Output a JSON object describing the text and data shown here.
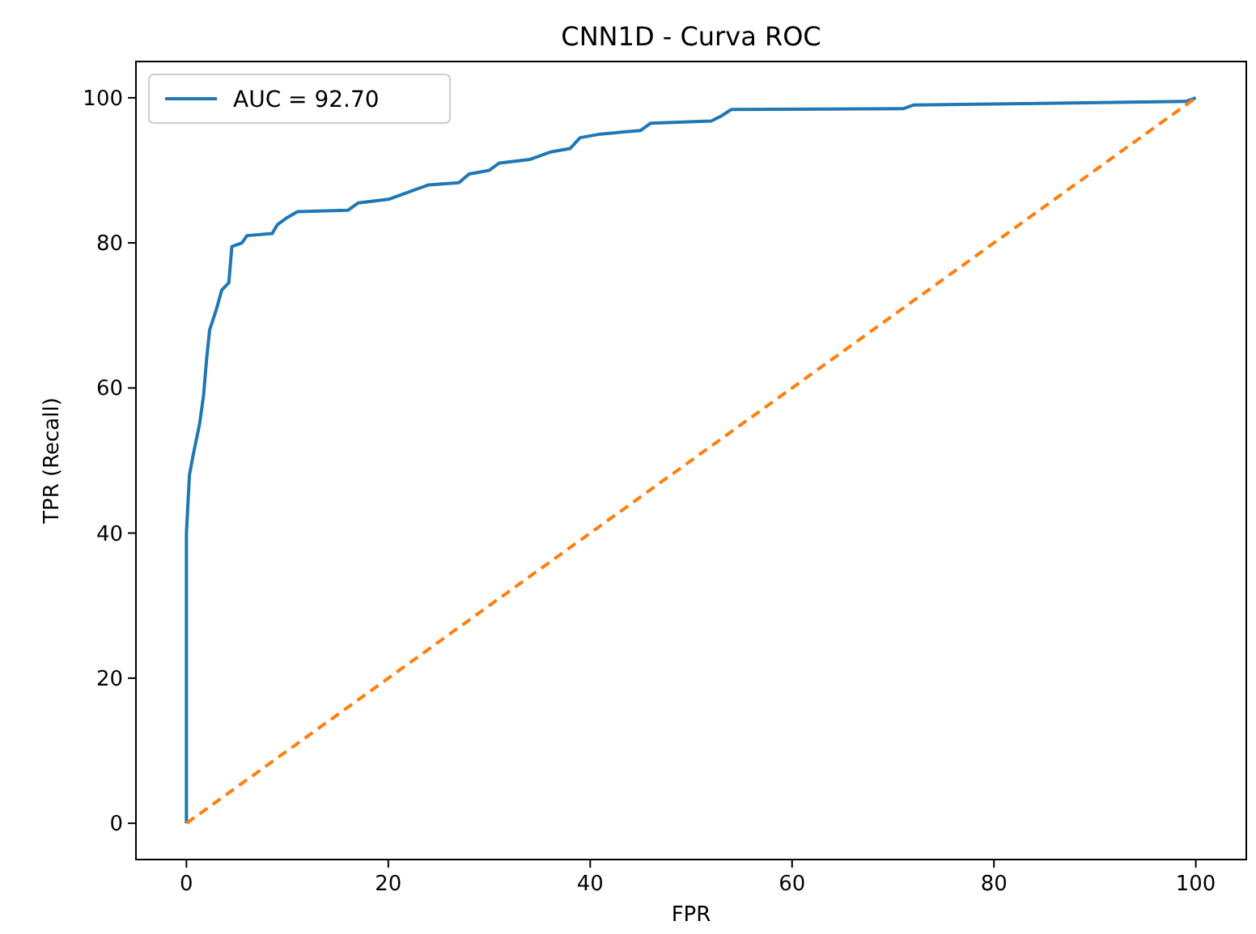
{
  "chart_data": {
    "type": "line",
    "title": "CNN1D - Curva ROC",
    "xlabel": "FPR",
    "ylabel": "TPR (Recall)",
    "xlim": [
      -5,
      105
    ],
    "ylim": [
      -5,
      105
    ],
    "xticks": [
      0,
      20,
      40,
      60,
      80,
      100
    ],
    "yticks": [
      0,
      20,
      40,
      60,
      80,
      100
    ],
    "grid": false,
    "legend": "top left",
    "series": [
      {
        "name": "AUC = 92.70",
        "color": "#1f77b4",
        "line_style": "solid",
        "x": [
          0,
          0,
          0.3,
          0.7,
          1.3,
          1.7,
          2,
          2.3,
          3,
          3.5,
          4.2,
          4.5,
          5.5,
          6,
          8.5,
          9,
          10,
          11,
          16,
          17,
          20,
          22,
          24,
          27,
          28,
          30,
          31,
          34,
          36,
          38,
          39,
          41,
          45,
          46,
          52,
          53,
          54,
          71,
          72,
          83,
          99,
          100
        ],
        "values": [
          0,
          40,
          48,
          51,
          55,
          59,
          64,
          68,
          71,
          73.5,
          74.5,
          79.5,
          80,
          81,
          81.3,
          82.5,
          83.5,
          84.3,
          84.5,
          85.5,
          86,
          87,
          88,
          88.3,
          89.5,
          90,
          91,
          91.5,
          92.5,
          93,
          94.5,
          95,
          95.5,
          96.5,
          96.8,
          97.5,
          98.4,
          98.5,
          99,
          99.2,
          99.5,
          100
        ]
      },
      {
        "color": "#ff7f0e",
        "line_style": "dashed",
        "x": [
          0,
          100
        ],
        "values": [
          0,
          100
        ]
      }
    ]
  }
}
